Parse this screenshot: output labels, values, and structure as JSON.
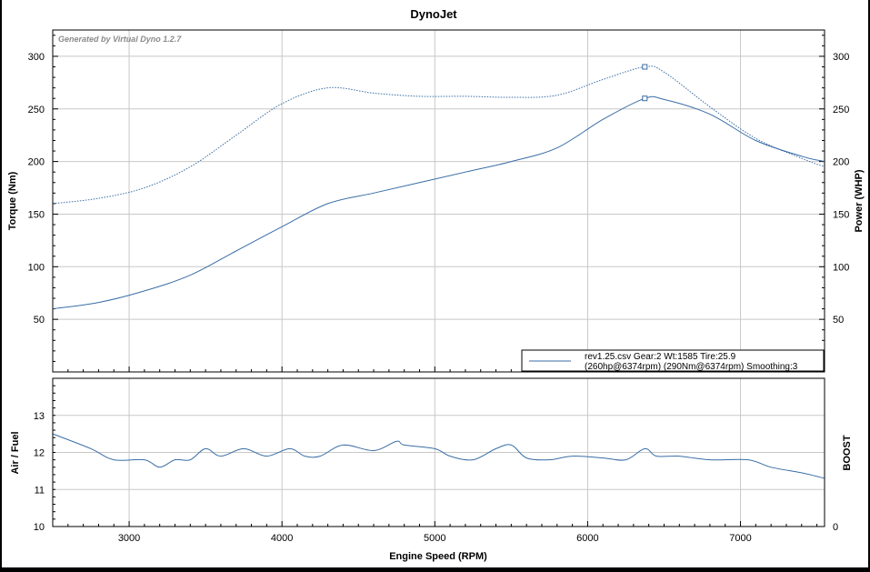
{
  "header": {
    "title": "DynoJet",
    "watermark": "Generated by Virtual Dyno 1.2.7"
  },
  "legend": {
    "line1": "rev1.25.csv Gear:2 Wt:1585 Tire:25.9",
    "line2": "(260hp@6374rpm) (290Nm@6374rpm) Smoothing:3"
  },
  "colors": {
    "series": "#3a6ea5",
    "grid": "#c8c8c8",
    "frame": "#000000",
    "background": "#ffffff"
  },
  "chart_data": [
    {
      "type": "line",
      "title": "DynoJet",
      "xlabel": "Engine Speed (RPM)",
      "ylabel": "Torque (Nm)",
      "y2label": "Power (WHP)",
      "xlim": [
        2500,
        7550
      ],
      "ylim": [
        0,
        325
      ],
      "x_ticks": [
        3000,
        4000,
        5000,
        6000,
        7000
      ],
      "y_ticks": [
        50,
        100,
        150,
        200,
        250,
        300
      ],
      "legend_position": "bottom-right",
      "grid": true,
      "series": [
        {
          "name": "rev1.25.csv Gear:2 Wt:1585 Tire:25.9",
          "style": "solid",
          "x": [
            2500,
            2800,
            3100,
            3400,
            3700,
            4000,
            4300,
            4600,
            4900,
            5200,
            5500,
            5800,
            6100,
            6374,
            6500,
            6800,
            7100,
            7400,
            7550
          ],
          "y": [
            60,
            66,
            77,
            92,
            115,
            138,
            160,
            170,
            180,
            190,
            200,
            213,
            240,
            260,
            259,
            245,
            220,
            205,
            200
          ]
        },
        {
          "name": "(260hp@6374rpm) (290Nm@6374rpm) Smoothing:3",
          "style": "dotted",
          "x": [
            2500,
            2800,
            3100,
            3400,
            3700,
            4000,
            4300,
            4600,
            4900,
            5200,
            5500,
            5800,
            6100,
            6374,
            6500,
            6800,
            7100,
            7400,
            7550
          ],
          "y": [
            160,
            165,
            175,
            195,
            225,
            255,
            270,
            265,
            262,
            262,
            261,
            263,
            278,
            290,
            285,
            252,
            222,
            203,
            195
          ]
        }
      ],
      "markers": [
        {
          "x": 6374,
          "y": 290
        },
        {
          "x": 6374,
          "y": 260
        }
      ]
    },
    {
      "type": "line",
      "ylabel": "Air / Fuel",
      "y2label": "BOOST",
      "xlabel": "Engine Speed (RPM)",
      "xlim": [
        2500,
        7550
      ],
      "ylim": [
        10,
        14
      ],
      "y_ticks": [
        10,
        11,
        12,
        13
      ],
      "y2_ticks": [
        0
      ],
      "grid": true,
      "series": [
        {
          "name": "Air / Fuel",
          "x": [
            2500,
            2750,
            2900,
            3100,
            3200,
            3300,
            3400,
            3500,
            3600,
            3750,
            3900,
            4050,
            4150,
            4250,
            4400,
            4600,
            4750,
            4800,
            5000,
            5100,
            5250,
            5400,
            5500,
            5600,
            5750,
            5900,
            6100,
            6250,
            6374,
            6450,
            6600,
            6800,
            7050,
            7200,
            7400,
            7550
          ],
          "y": [
            12.5,
            12.1,
            11.8,
            11.8,
            11.6,
            11.8,
            11.8,
            12.1,
            11.9,
            12.1,
            11.9,
            12.1,
            11.9,
            11.9,
            12.2,
            12.05,
            12.3,
            12.2,
            12.1,
            11.9,
            11.8,
            12.1,
            12.2,
            11.85,
            11.8,
            11.9,
            11.85,
            11.8,
            12.1,
            11.9,
            11.9,
            11.8,
            11.8,
            11.6,
            11.45,
            11.3
          ]
        }
      ]
    }
  ]
}
